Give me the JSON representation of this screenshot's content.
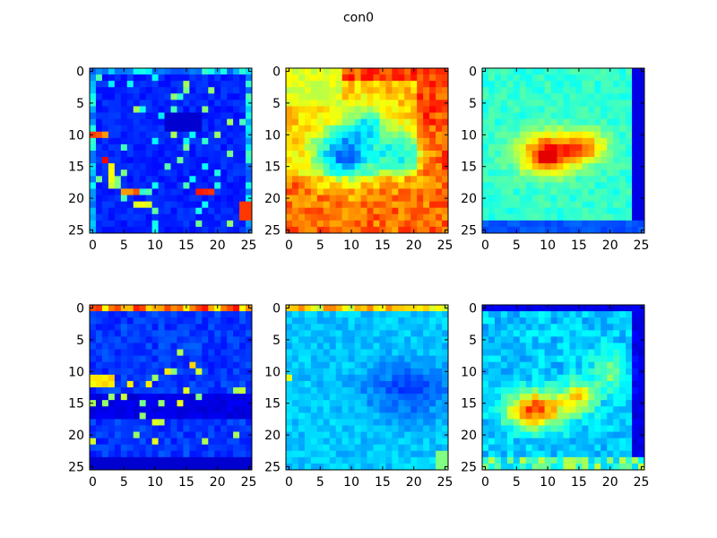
{
  "figure": {
    "title": "con0"
  },
  "chart_data": [
    {
      "type": "heatmap",
      "grid": false,
      "xlim": [
        0,
        25
      ],
      "ylim": [
        25,
        0
      ],
      "x_ticks": [
        "0",
        "5",
        "10",
        "15",
        "20",
        "25"
      ],
      "y_ticks": [
        "0",
        "5",
        "10",
        "15",
        "20",
        "25"
      ],
      "colormap": "jet",
      "pattern": "sparse-dark"
    },
    {
      "type": "heatmap",
      "grid": false,
      "xlim": [
        0,
        25
      ],
      "ylim": [
        25,
        0
      ],
      "x_ticks": [
        "0",
        "5",
        "10",
        "15",
        "20",
        "25"
      ],
      "y_ticks": [
        "0",
        "5",
        "10",
        "15",
        "20",
        "25"
      ],
      "colormap": "jet",
      "pattern": "warm-with-dark-center"
    },
    {
      "type": "heatmap",
      "grid": false,
      "xlim": [
        0,
        25
      ],
      "ylim": [
        25,
        0
      ],
      "x_ticks": [
        "0",
        "5",
        "10",
        "15",
        "20",
        "25"
      ],
      "y_ticks": [
        "0",
        "5",
        "10",
        "15",
        "20",
        "25"
      ],
      "colormap": "jet",
      "pattern": "cyan-with-hot-center"
    },
    {
      "type": "heatmap",
      "grid": false,
      "xlim": [
        0,
        25
      ],
      "ylim": [
        25,
        0
      ],
      "x_ticks": [
        "0",
        "5",
        "10",
        "15",
        "20",
        "25"
      ],
      "y_ticks": [
        "0",
        "5",
        "10",
        "15",
        "20",
        "25"
      ],
      "colormap": "jet",
      "pattern": "dark-with-top-edge"
    },
    {
      "type": "heatmap",
      "grid": false,
      "xlim": [
        0,
        25
      ],
      "ylim": [
        25,
        0
      ],
      "x_ticks": [
        "0",
        "5",
        "10",
        "15",
        "20",
        "25"
      ],
      "y_ticks": [
        "0",
        "5",
        "10",
        "15",
        "20",
        "25"
      ],
      "colormap": "jet",
      "pattern": "cool-uniform"
    },
    {
      "type": "heatmap",
      "grid": false,
      "xlim": [
        0,
        25
      ],
      "ylim": [
        25,
        0
      ],
      "x_ticks": [
        "0",
        "5",
        "10",
        "15",
        "20",
        "25"
      ],
      "y_ticks": [
        "0",
        "5",
        "10",
        "15",
        "20",
        "25"
      ],
      "colormap": "jet",
      "pattern": "hot-blob-lower-left"
    }
  ]
}
